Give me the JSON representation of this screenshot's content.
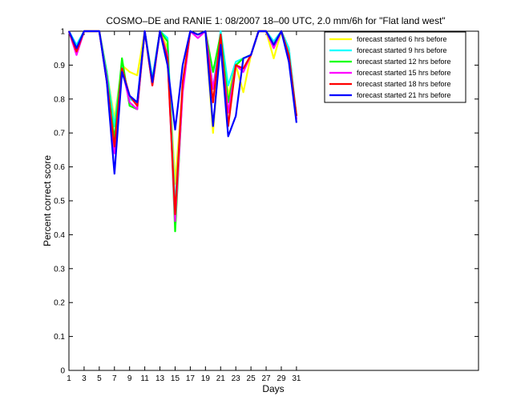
{
  "chart_data": {
    "type": "line",
    "title": "COSMO–DE and RANIE 1: 08/2007 18–00 UTC, 2.0 mm/6h for \"Flat land west\"",
    "xlabel": "Days",
    "ylabel": "Percent correct score",
    "xlim": [
      1,
      55
    ],
    "ylim": [
      0,
      1
    ],
    "xticks": [
      1,
      3,
      5,
      7,
      9,
      11,
      13,
      15,
      17,
      19,
      21,
      23,
      25,
      27,
      29,
      31
    ],
    "yticks": [
      0,
      0.1,
      0.2,
      0.3,
      0.4,
      0.5,
      0.6,
      0.7,
      0.8,
      0.9,
      1
    ],
    "ytick_labels": [
      "0",
      "0.1",
      "0.2",
      "0.3",
      "0.4",
      "0.5",
      "0.6",
      "0.7",
      "0.8",
      "0.9",
      "1"
    ],
    "legend_position": "top-right",
    "x": [
      1,
      2,
      3,
      4,
      5,
      6,
      7,
      8,
      9,
      10,
      11,
      12,
      13,
      14,
      15,
      16,
      17,
      18,
      19,
      20,
      21,
      22,
      23,
      24,
      25,
      26,
      27,
      28,
      29,
      30,
      31
    ],
    "series": [
      {
        "name": "forecast started 6 hrs before",
        "color": "#ffff00",
        "values": [
          1,
          0.95,
          1,
          1,
          1,
          0.88,
          0.74,
          0.9,
          0.88,
          0.87,
          1,
          0.86,
          1,
          0.95,
          0.55,
          0.83,
          1,
          0.99,
          1,
          0.7,
          1,
          0.81,
          0.9,
          0.82,
          0.93,
          1,
          1,
          0.92,
          1,
          0.94,
          0.74
        ]
      },
      {
        "name": "forecast started 9 hrs before",
        "color": "#00ffff",
        "values": [
          1,
          0.96,
          1,
          1,
          1,
          0.88,
          0.72,
          0.9,
          0.8,
          0.79,
          1,
          0.86,
          1,
          0.98,
          0.48,
          0.84,
          1,
          0.99,
          1,
          0.83,
          1,
          0.84,
          0.91,
          0.92,
          0.93,
          1,
          1,
          0.97,
          1,
          0.95,
          0.75
        ]
      },
      {
        "name": "forecast started 12 hrs before",
        "color": "#00ff00",
        "values": [
          1,
          0.94,
          1,
          1,
          1,
          0.87,
          0.68,
          0.92,
          0.78,
          0.77,
          1,
          0.85,
          1,
          0.97,
          0.41,
          0.83,
          1,
          0.99,
          1,
          0.88,
          0.99,
          0.79,
          0.9,
          0.92,
          0.93,
          1,
          1,
          0.96,
          1,
          0.93,
          0.75
        ]
      },
      {
        "name": "forecast started 15 hrs before",
        "color": "#ff00ff",
        "values": [
          1,
          0.93,
          1,
          1,
          1,
          0.86,
          0.64,
          0.89,
          0.79,
          0.77,
          1,
          0.84,
          1,
          0.93,
          0.44,
          0.82,
          1,
          0.98,
          1,
          0.83,
          0.97,
          0.76,
          0.9,
          0.88,
          0.93,
          1,
          1,
          0.95,
          1,
          0.92,
          0.74
        ]
      },
      {
        "name": "forecast started 18 hrs before",
        "color": "#ff0000",
        "values": [
          1,
          0.94,
          1,
          1,
          1,
          0.85,
          0.66,
          0.89,
          0.81,
          0.78,
          1,
          0.84,
          1,
          0.92,
          0.46,
          0.85,
          1,
          0.99,
          1,
          0.79,
          0.99,
          0.72,
          0.9,
          0.89,
          0.93,
          1,
          1,
          0.96,
          1,
          0.93,
          0.75
        ]
      },
      {
        "name": "forecast started 21 hrs before",
        "color": "#0000ff",
        "values": [
          1,
          0.95,
          1,
          1,
          1,
          0.85,
          0.58,
          0.88,
          0.81,
          0.79,
          1,
          0.85,
          1,
          0.9,
          0.71,
          0.9,
          1,
          0.99,
          1,
          0.72,
          0.96,
          0.69,
          0.75,
          0.92,
          0.93,
          1,
          1,
          0.96,
          1,
          0.91,
          0.73
        ]
      }
    ]
  }
}
